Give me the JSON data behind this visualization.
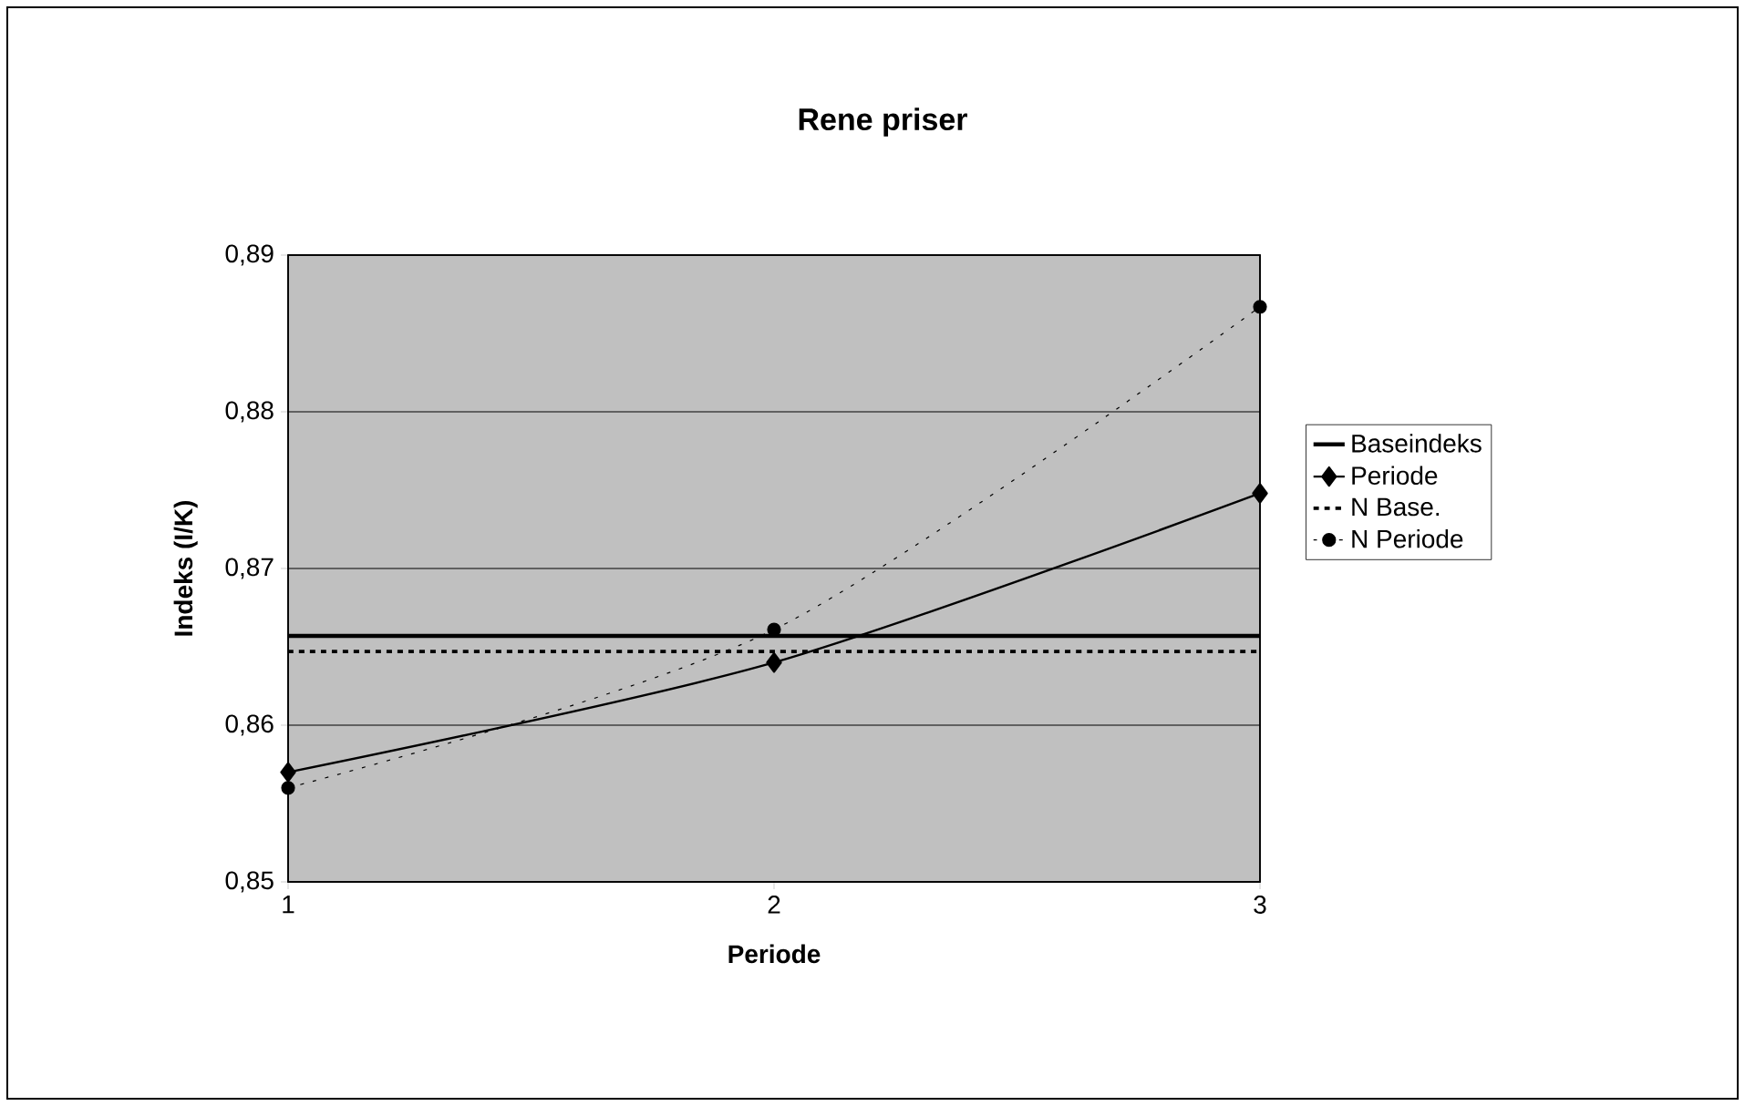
{
  "chart_data": {
    "type": "line",
    "title": "Rene priser",
    "xlabel": "Periode",
    "ylabel": "Indeks (I/K)",
    "x": [
      1,
      2,
      3
    ],
    "xlim": [
      1,
      3
    ],
    "xticks": [
      1,
      2,
      3
    ],
    "ylim": [
      0.85,
      0.89
    ],
    "yticks": [
      {
        "value": 0.85,
        "label": "0,85"
      },
      {
        "value": 0.86,
        "label": "0,86"
      },
      {
        "value": 0.87,
        "label": "0,87"
      },
      {
        "value": 0.88,
        "label": "0,88"
      },
      {
        "value": 0.89,
        "label": "0,89"
      }
    ],
    "grid": "y",
    "legend": "right",
    "series": [
      {
        "name": "Baseindeks",
        "color": "#000000",
        "values": [
          0.8657,
          0.8657,
          0.8657
        ],
        "marker": "none",
        "line_style": "solid"
      },
      {
        "name": "Periode",
        "color": "#000000",
        "values": [
          0.857,
          0.864,
          0.8748
        ],
        "marker": "diamond",
        "line_style": "solid"
      },
      {
        "name": "N Base.",
        "color": "#000000",
        "values": [
          0.8647,
          0.8647,
          0.8647
        ],
        "marker": "none",
        "line_style": "dashed"
      },
      {
        "name": "N Periode",
        "color": "#000000",
        "values": [
          0.856,
          0.8661,
          0.8867
        ],
        "marker": "circle",
        "line_style": "dotted"
      }
    ]
  }
}
